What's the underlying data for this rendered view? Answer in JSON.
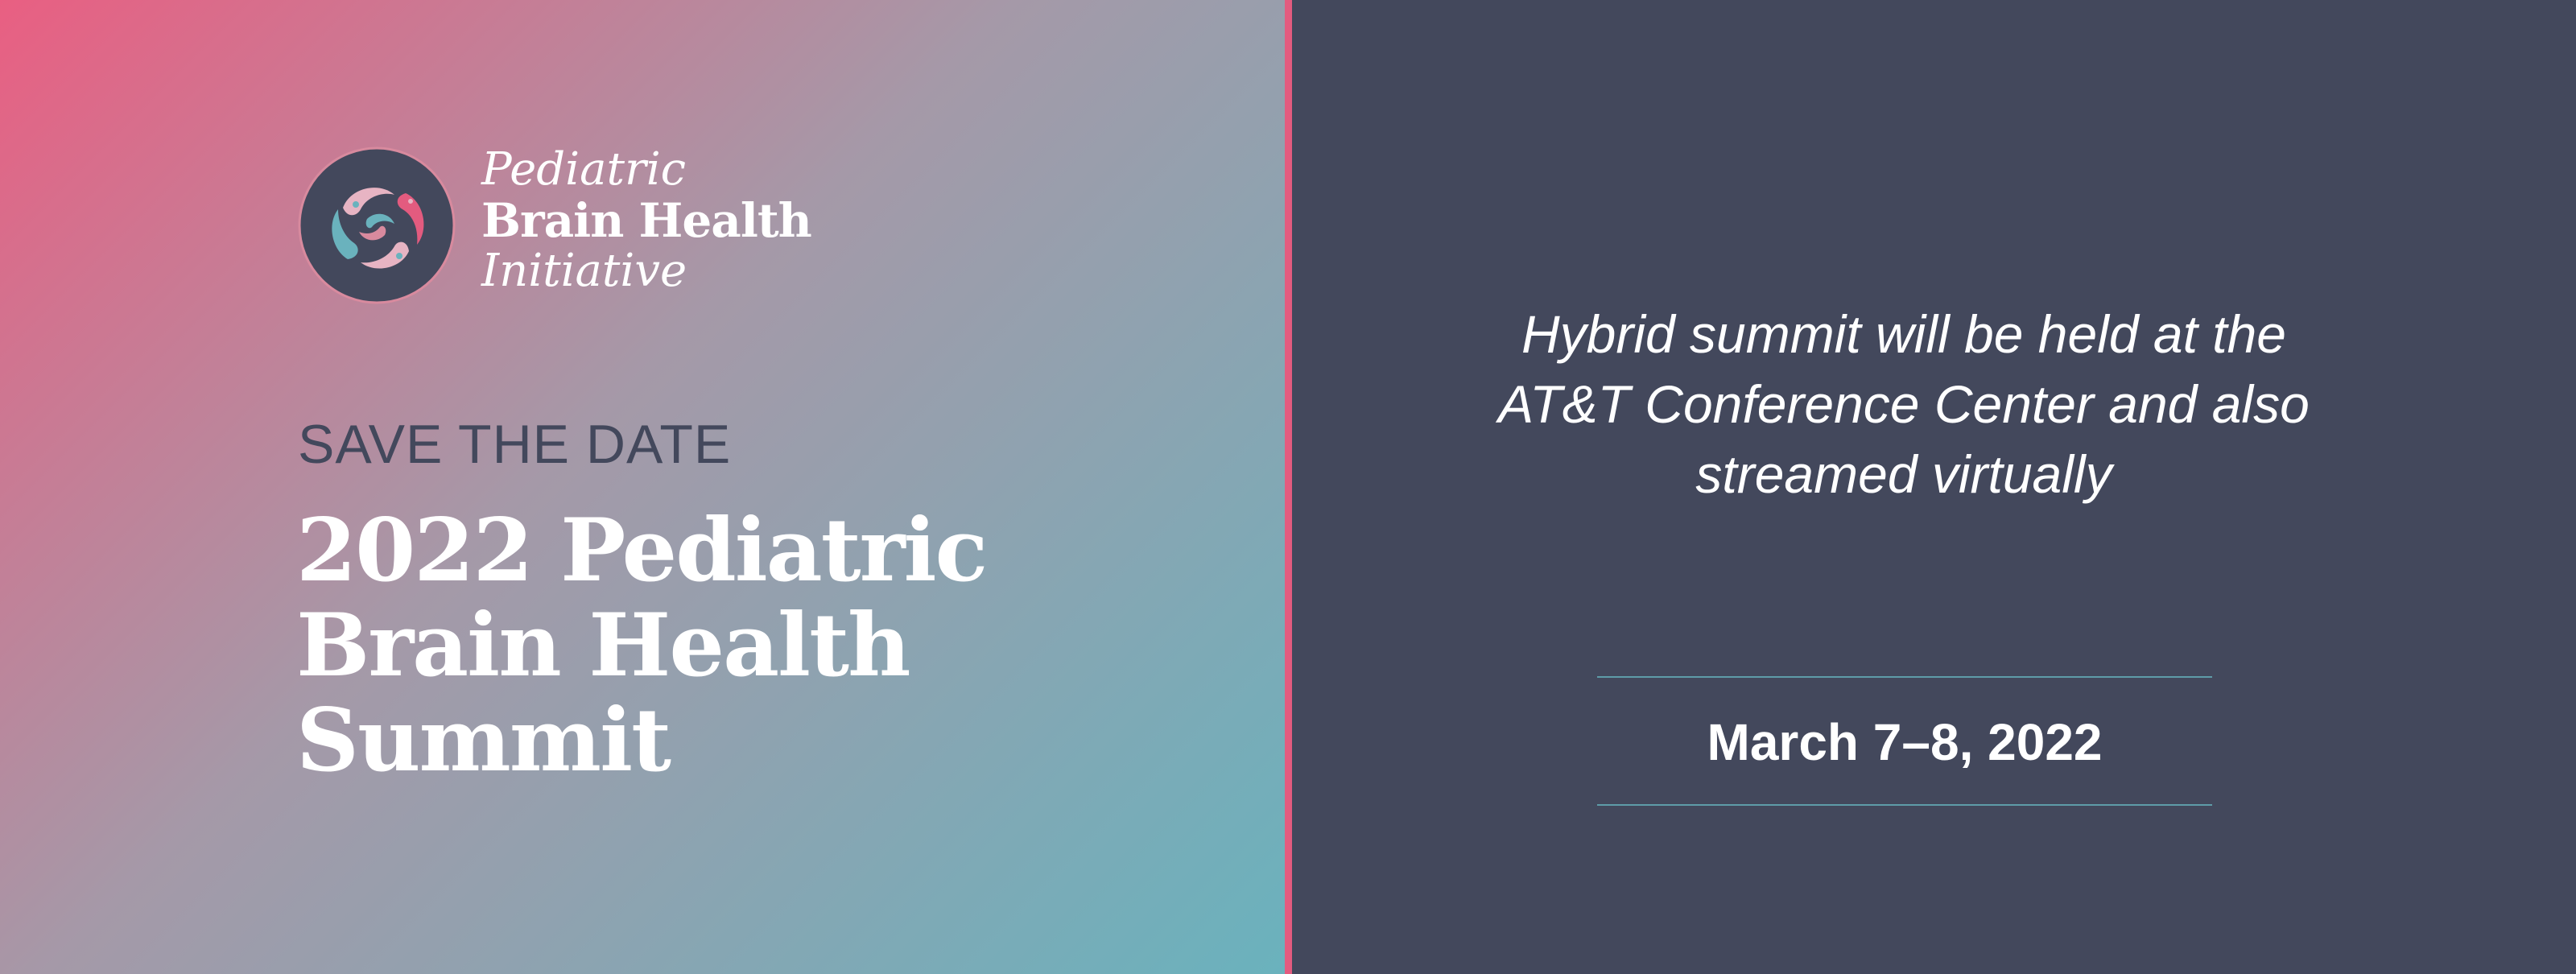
{
  "logo": {
    "line1": "Pediatric",
    "line2": "Brain Health",
    "line3": "Initiative",
    "mark_icon": "brain-swirl-logo-icon"
  },
  "hero": {
    "eyebrow": "SAVE THE DATE",
    "title_lines": [
      "2022 Pediatric",
      "Brain Health",
      "Summit"
    ]
  },
  "details": {
    "location_lines": [
      "Hybrid summit will be held at the",
      "AT&T Conference Center and also",
      "streamed virtually"
    ],
    "date": "March 7–8, 2022"
  },
  "colors": {
    "gradient_start": "#e95f82",
    "gradient_mid": "#a599a8",
    "gradient_end": "#6ab2bd",
    "panel_dark": "#43485c",
    "divider": "#e35b7f",
    "rule": "#5e9ca8",
    "text_light": "#ffffff"
  }
}
